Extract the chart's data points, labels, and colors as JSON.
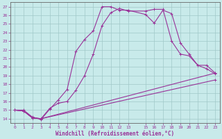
{
  "xlabel": "Windchill (Refroidissement éolien,°C)",
  "bg_color": "#c8eaea",
  "line_color": "#993399",
  "grid_color": "#a0c8c8",
  "xlim": [
    -0.5,
    23.5
  ],
  "ylim": [
    13.5,
    27.5
  ],
  "yticks": [
    14,
    15,
    16,
    17,
    18,
    19,
    20,
    21,
    22,
    23,
    24,
    25,
    26,
    27
  ],
  "xticks": [
    0,
    1,
    2,
    3,
    4,
    5,
    6,
    7,
    8,
    9,
    10,
    11,
    12,
    13,
    15,
    16,
    17,
    18,
    19,
    20,
    21,
    22,
    23
  ],
  "line1_x": [
    0,
    1,
    2,
    3,
    4,
    5,
    6,
    7,
    8,
    9,
    10,
    11,
    12,
    13,
    15,
    16,
    17,
    18,
    19,
    20,
    21,
    22,
    23
  ],
  "line1_y": [
    15,
    15,
    14.2,
    13.9,
    15.1,
    16.2,
    17.4,
    21.8,
    23.2,
    24.2,
    27,
    27,
    26.6,
    26.6,
    26.1,
    25.1,
    26.6,
    26.2,
    22.8,
    21.5,
    20.2,
    19.8,
    19.2
  ],
  "line2_x": [
    0,
    1,
    2,
    3,
    4,
    5,
    6,
    7,
    8,
    9,
    10,
    11,
    12,
    13,
    15,
    16,
    17,
    18,
    19,
    20,
    21,
    22,
    23
  ],
  "line2_y": [
    15,
    14.9,
    14.1,
    14.0,
    15.2,
    15.8,
    16.0,
    17.3,
    19.0,
    21.5,
    24.8,
    26.3,
    26.8,
    26.5,
    26.5,
    26.7,
    26.7,
    23.0,
    21.5,
    21.3,
    20.2,
    20.2,
    19.3
  ],
  "line3_x": [
    0,
    1,
    2,
    3,
    23
  ],
  "line3_y": [
    15,
    14.9,
    14.1,
    14.0,
    19.3
  ],
  "line4_x": [
    0,
    1,
    2,
    3,
    23
  ],
  "line4_y": [
    15,
    14.9,
    14.1,
    14.0,
    18.5
  ]
}
